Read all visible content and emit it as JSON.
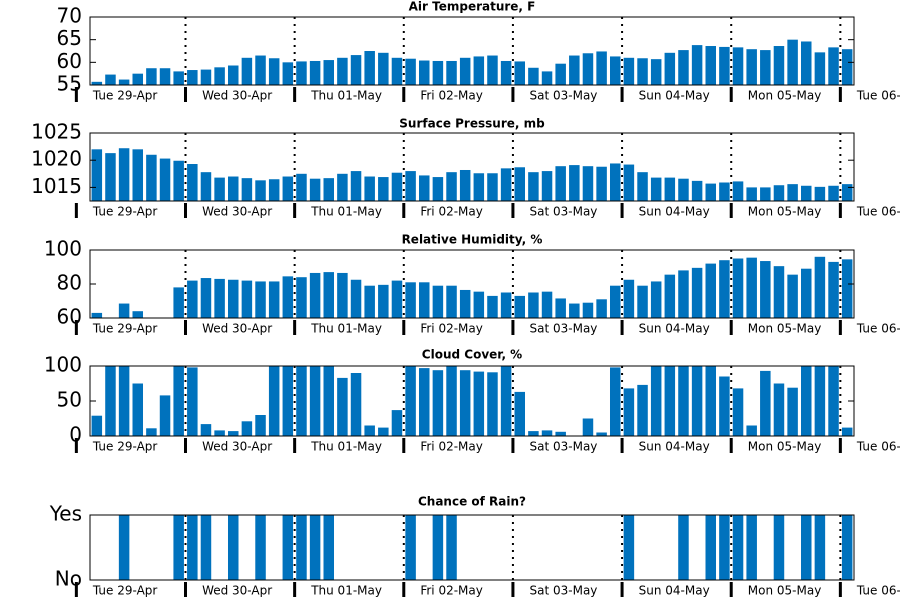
{
  "chart_data": [
    {
      "type": "bar",
      "title": "Air Temperature, F",
      "color": "#0072bd",
      "x": [
        4.5,
        7.5,
        10.5,
        13.5,
        16.5,
        19.5,
        22.5,
        25.5,
        28.5,
        31.5,
        34.5,
        37.5,
        40.5,
        43.5,
        46.5,
        49.5,
        52.5,
        55.5,
        58.5,
        61.5,
        64.5,
        67.5,
        70.5,
        73.5,
        76.5,
        79.5,
        82.5,
        85.5,
        88.5,
        91.5,
        94.5,
        97.5,
        100.5,
        103.5,
        106.5,
        109.5,
        112.5,
        115.5,
        118.5,
        121.5,
        124.5,
        127.5,
        130.5,
        133.5,
        136.5,
        139.5,
        142.5,
        145.5,
        148.5,
        151.5,
        154.5,
        157.5,
        160.5,
        163.5,
        166.5,
        169.5
      ],
      "values": [
        55.7,
        57.3,
        56.2,
        57.5,
        58.7,
        58.7,
        58.0,
        58.3,
        58.4,
        58.9,
        59.3,
        61.0,
        61.5,
        60.9,
        60.0,
        60.2,
        60.3,
        60.5,
        61.0,
        61.6,
        62.5,
        62.1,
        61.0,
        60.8,
        60.4,
        60.3,
        60.3,
        61.0,
        61.3,
        61.5,
        60.3,
        60.2,
        58.8,
        58.0,
        59.7,
        61.5,
        62.0,
        62.4,
        61.3,
        61.0,
        60.9,
        60.7,
        62.1,
        62.7,
        63.8,
        63.6,
        63.4,
        63.3,
        62.9,
        62.7,
        63.6,
        65.0,
        64.6,
        62.2,
        63.3,
        62.9
      ],
      "xlim": [
        3,
        171
      ],
      "ylim": [
        55,
        70
      ],
      "yticks": [
        55,
        60,
        65,
        70
      ],
      "xticks": [
        {
          "value": 12,
          "label": "Tue 29-Apr"
        },
        {
          "value": 36,
          "label": "Wed 30-Apr"
        },
        {
          "value": 60,
          "label": "Thu 01-May"
        },
        {
          "value": 84,
          "label": "Fri 02-May"
        },
        {
          "value": 108,
          "label": "Sat 03-May"
        },
        {
          "value": 132,
          "label": "Sun 04-May"
        },
        {
          "value": 156,
          "label": "Mon 05-May"
        },
        {
          "value": 180,
          "label": "Tue 06-"
        }
      ],
      "xminorticks": [
        0,
        24,
        48,
        72,
        96,
        120,
        144,
        168
      ]
    },
    {
      "type": "bar",
      "title": "Surface Pressure, mb",
      "color": "#0072bd",
      "x": [
        4.5,
        7.5,
        10.5,
        13.5,
        16.5,
        19.5,
        22.5,
        25.5,
        28.5,
        31.5,
        34.5,
        37.5,
        40.5,
        43.5,
        46.5,
        49.5,
        52.5,
        55.5,
        58.5,
        61.5,
        64.5,
        67.5,
        70.5,
        73.5,
        76.5,
        79.5,
        82.5,
        85.5,
        88.5,
        91.5,
        94.5,
        97.5,
        100.5,
        103.5,
        106.5,
        109.5,
        112.5,
        115.5,
        118.5,
        121.5,
        124.5,
        127.5,
        130.5,
        133.5,
        136.5,
        139.5,
        142.5,
        145.5,
        148.5,
        151.5,
        154.5,
        157.5,
        160.5,
        163.5,
        166.5,
        169.5
      ],
      "values": [
        1022.0,
        1021.3,
        1022.2,
        1022.0,
        1021.0,
        1020.3,
        1019.9,
        1019.3,
        1017.8,
        1016.8,
        1017.0,
        1016.7,
        1016.3,
        1016.5,
        1017.0,
        1017.5,
        1016.6,
        1016.7,
        1017.5,
        1018.0,
        1017.0,
        1016.9,
        1017.7,
        1018.0,
        1017.2,
        1016.9,
        1017.8,
        1018.2,
        1017.6,
        1017.6,
        1018.5,
        1018.7,
        1017.8,
        1018.0,
        1018.9,
        1019.1,
        1018.9,
        1018.8,
        1019.4,
        1019.2,
        1017.8,
        1016.8,
        1016.8,
        1016.6,
        1016.2,
        1015.7,
        1015.9,
        1016.1,
        1015.0,
        1015.0,
        1015.4,
        1015.6,
        1015.3,
        1015.1,
        1015.3,
        1015.6
      ],
      "xlim": [
        3,
        171
      ],
      "ylim": [
        1012.5,
        1025
      ],
      "yticks": [
        1015,
        1020,
        1025
      ],
      "xticks": [
        {
          "value": 12,
          "label": "Tue 29-Apr"
        },
        {
          "value": 36,
          "label": "Wed 30-Apr"
        },
        {
          "value": 60,
          "label": "Thu 01-May"
        },
        {
          "value": 84,
          "label": "Fri 02-May"
        },
        {
          "value": 108,
          "label": "Sat 03-May"
        },
        {
          "value": 132,
          "label": "Sun 04-May"
        },
        {
          "value": 156,
          "label": "Mon 05-May"
        },
        {
          "value": 180,
          "label": "Tue 06-"
        }
      ],
      "xminorticks": [
        0,
        24,
        48,
        72,
        96,
        120,
        144,
        168
      ]
    },
    {
      "type": "bar",
      "title": "Relative Humidity, %",
      "color": "#0072bd",
      "x": [
        4.5,
        7.5,
        10.5,
        13.5,
        16.5,
        19.5,
        22.5,
        25.5,
        28.5,
        31.5,
        34.5,
        37.5,
        40.5,
        43.5,
        46.5,
        49.5,
        52.5,
        55.5,
        58.5,
        61.5,
        64.5,
        67.5,
        70.5,
        73.5,
        76.5,
        79.5,
        82.5,
        85.5,
        88.5,
        91.5,
        94.5,
        97.5,
        100.5,
        103.5,
        106.5,
        109.5,
        112.5,
        115.5,
        118.5,
        121.5,
        124.5,
        127.5,
        130.5,
        133.5,
        136.5,
        139.5,
        142.5,
        145.5,
        148.5,
        151.5,
        154.5,
        157.5,
        160.5,
        163.5,
        166.5,
        169.5
      ],
      "values": [
        63,
        58,
        68.5,
        64,
        57,
        56,
        78,
        82,
        83.5,
        83,
        82.5,
        82,
        81.5,
        81.5,
        84.5,
        84,
        86.5,
        87,
        86.5,
        82.5,
        79,
        79.5,
        82,
        81,
        81,
        79,
        79,
        76.5,
        75.5,
        73,
        75,
        73,
        75,
        75.5,
        71.5,
        68.5,
        69,
        71,
        79,
        82.5,
        79,
        81.5,
        85.5,
        88,
        89.5,
        92,
        94,
        95,
        95.5,
        93.5,
        90.5,
        85.5,
        89,
        96,
        93,
        94.5
      ],
      "xlim": [
        3,
        171
      ],
      "ylim": [
        60,
        100
      ],
      "yticks": [
        60,
        80,
        100
      ],
      "xticks": [
        {
          "value": 12,
          "label": "Tue 29-Apr"
        },
        {
          "value": 36,
          "label": "Wed 30-Apr"
        },
        {
          "value": 60,
          "label": "Thu 01-May"
        },
        {
          "value": 84,
          "label": "Fri 02-May"
        },
        {
          "value": 108,
          "label": "Sat 03-May"
        },
        {
          "value": 132,
          "label": "Sun 04-May"
        },
        {
          "value": 156,
          "label": "Mon 05-May"
        },
        {
          "value": 180,
          "label": "Tue 06-"
        }
      ],
      "xminorticks": [
        0,
        24,
        48,
        72,
        96,
        120,
        144,
        168
      ]
    },
    {
      "type": "bar",
      "title": "Cloud Cover, %",
      "color": "#0072bd",
      "x": [
        4.5,
        7.5,
        10.5,
        13.5,
        16.5,
        19.5,
        22.5,
        25.5,
        28.5,
        31.5,
        34.5,
        37.5,
        40.5,
        43.5,
        46.5,
        49.5,
        52.5,
        55.5,
        58.5,
        61.5,
        64.5,
        67.5,
        70.5,
        73.5,
        76.5,
        79.5,
        82.5,
        85.5,
        88.5,
        91.5,
        94.5,
        97.5,
        100.5,
        103.5,
        106.5,
        109.5,
        112.5,
        115.5,
        118.5,
        121.5,
        124.5,
        127.5,
        130.5,
        133.5,
        136.5,
        139.5,
        142.5,
        145.5,
        148.5,
        151.5,
        154.5,
        157.5,
        160.5,
        163.5,
        166.5,
        169.5
      ],
      "values": [
        29,
        100,
        100,
        75,
        11,
        58,
        100,
        98,
        17,
        8,
        7,
        21,
        30,
        100,
        100,
        100,
        100,
        100,
        83,
        90,
        15,
        12,
        37,
        100,
        97,
        94,
        100,
        94,
        92,
        91,
        100,
        63,
        7,
        8,
        6,
        0,
        25,
        5,
        98,
        68,
        73,
        100,
        100,
        100,
        100,
        100,
        85,
        68,
        15,
        93,
        75,
        69,
        100,
        100,
        100,
        12
      ],
      "xlim": [
        3,
        171
      ],
      "ylim": [
        0,
        100
      ],
      "yticks": [
        0,
        50,
        100
      ],
      "xticks": [
        {
          "value": 12,
          "label": "Tue 29-Apr"
        },
        {
          "value": 36,
          "label": "Wed 30-Apr"
        },
        {
          "value": 60,
          "label": "Thu 01-May"
        },
        {
          "value": 84,
          "label": "Fri 02-May"
        },
        {
          "value": 108,
          "label": "Sat 03-May"
        },
        {
          "value": 132,
          "label": "Sun 04-May"
        },
        {
          "value": 156,
          "label": "Mon 05-May"
        },
        {
          "value": 180,
          "label": "Tue 06-"
        }
      ],
      "xminorticks": [
        0,
        24,
        48,
        72,
        96,
        120,
        144,
        168
      ]
    },
    {
      "type": "bar",
      "title": "Chance of Rain?",
      "color": "#0072bd",
      "x": [
        4.5,
        7.5,
        10.5,
        13.5,
        16.5,
        19.5,
        22.5,
        25.5,
        28.5,
        31.5,
        34.5,
        37.5,
        40.5,
        43.5,
        46.5,
        49.5,
        52.5,
        55.5,
        58.5,
        61.5,
        64.5,
        67.5,
        70.5,
        73.5,
        76.5,
        79.5,
        82.5,
        85.5,
        88.5,
        91.5,
        94.5,
        97.5,
        100.5,
        103.5,
        106.5,
        109.5,
        112.5,
        115.5,
        118.5,
        121.5,
        124.5,
        127.5,
        130.5,
        133.5,
        136.5,
        139.5,
        142.5,
        145.5,
        148.5,
        151.5,
        154.5,
        157.5,
        160.5,
        163.5,
        166.5,
        169.5
      ],
      "values": [
        0,
        0,
        1,
        0,
        0,
        0,
        1,
        1,
        1,
        0,
        1,
        0,
        1,
        0,
        1,
        1,
        1,
        1,
        0,
        0,
        0,
        0,
        0,
        1,
        0,
        1,
        1,
        0,
        0,
        0,
        0,
        0,
        0,
        0,
        0,
        0,
        0,
        0,
        0,
        1,
        0,
        0,
        0,
        1,
        0,
        1,
        1,
        1,
        1,
        0,
        1,
        0,
        1,
        1,
        0,
        1
      ],
      "xlim": [
        3,
        171
      ],
      "ylim": [
        0,
        1
      ],
      "yticks": [
        {
          "value": 0,
          "label": "No"
        },
        {
          "value": 1,
          "label": "Yes"
        }
      ],
      "xticks": [
        {
          "value": 12,
          "label": "Tue 29-Apr"
        },
        {
          "value": 36,
          "label": "Wed 30-Apr"
        },
        {
          "value": 60,
          "label": "Thu 01-May"
        },
        {
          "value": 84,
          "label": "Fri 02-May"
        },
        {
          "value": 108,
          "label": "Sat 03-May"
        },
        {
          "value": 132,
          "label": "Sun 04-May"
        },
        {
          "value": 156,
          "label": "Mon 05-May"
        },
        {
          "value": 180,
          "label": "Tue 06-"
        }
      ],
      "xminorticks": [
        0,
        24,
        48,
        72,
        96,
        120,
        144,
        168
      ]
    }
  ]
}
